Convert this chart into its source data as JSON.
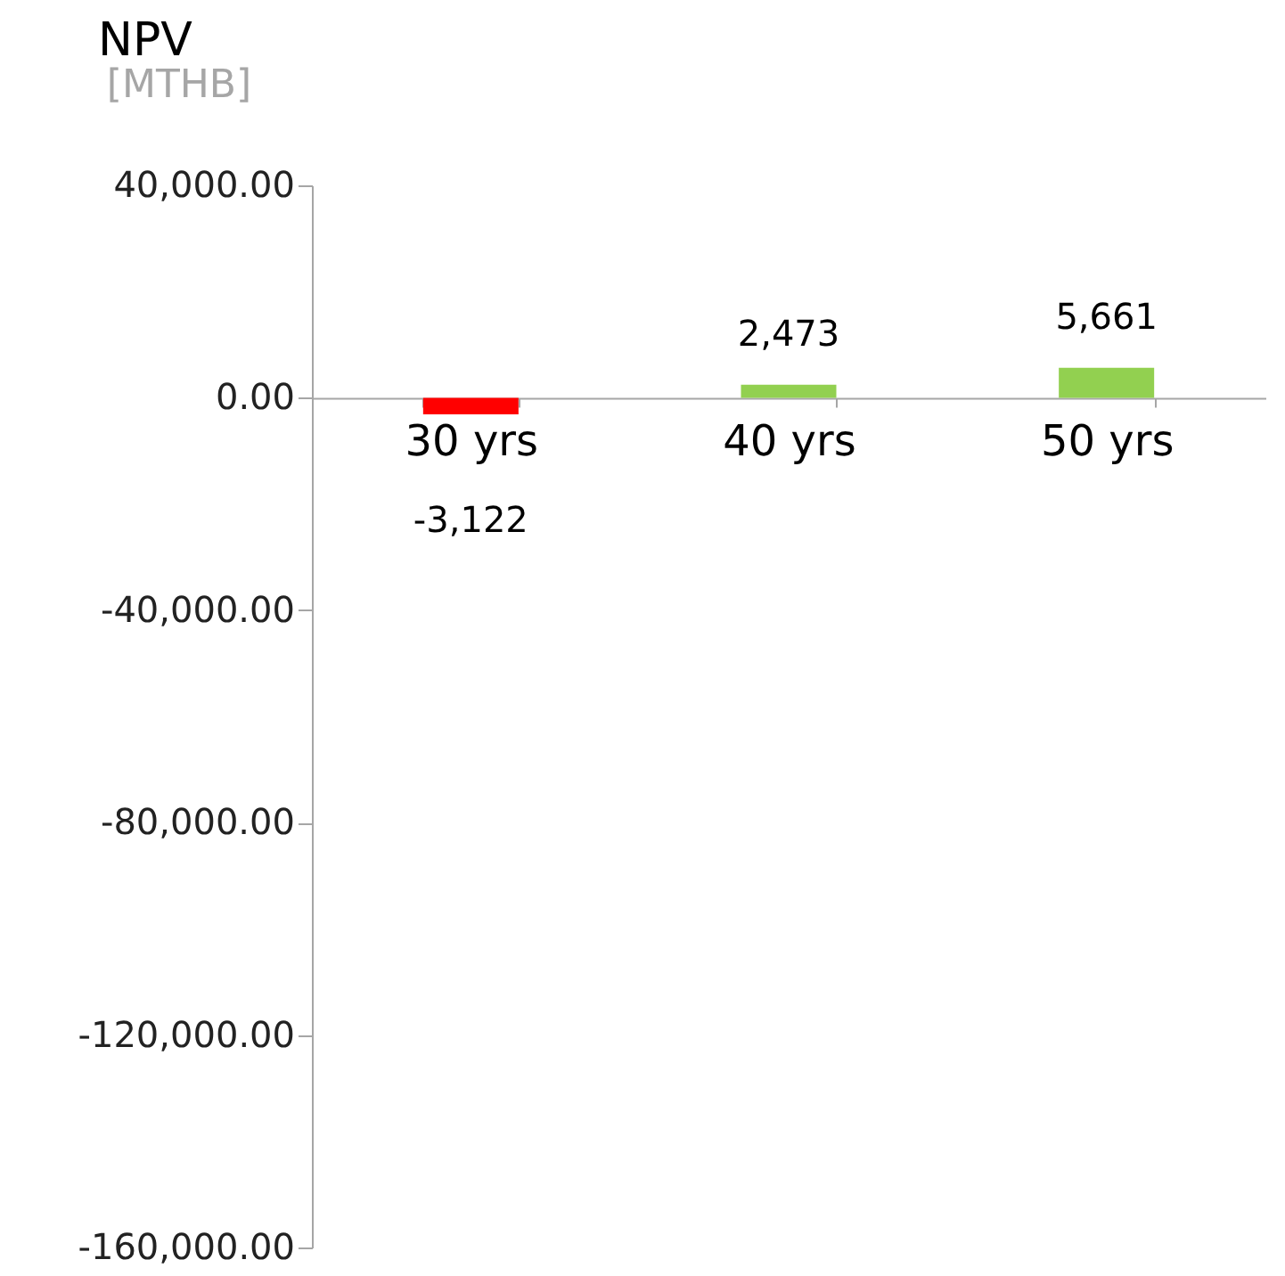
{
  "chart_data": {
    "type": "bar",
    "title": "NPV",
    "ylabel": "[MTHB]",
    "categories": [
      "30 yrs",
      "40 yrs",
      "50 yrs"
    ],
    "values": [
      -3122,
      2473,
      5661
    ],
    "colors": [
      "#ff0000",
      "#92d050",
      "#92d050"
    ],
    "value_labels": [
      "-3,122",
      "2,473",
      "5,661"
    ],
    "ylim": [
      -160000,
      40000
    ],
    "yticks": [
      {
        "value": 40000,
        "label": "40,000.00"
      },
      {
        "value": 0,
        "label": "0.00"
      },
      {
        "value": -40000,
        "label": "-40,000.00"
      },
      {
        "value": -80000,
        "label": "-80,000.00"
      },
      {
        "value": -120000,
        "label": "-120,000.00"
      },
      {
        "value": -160000,
        "label": "-160,000.00"
      }
    ],
    "grid": false
  }
}
